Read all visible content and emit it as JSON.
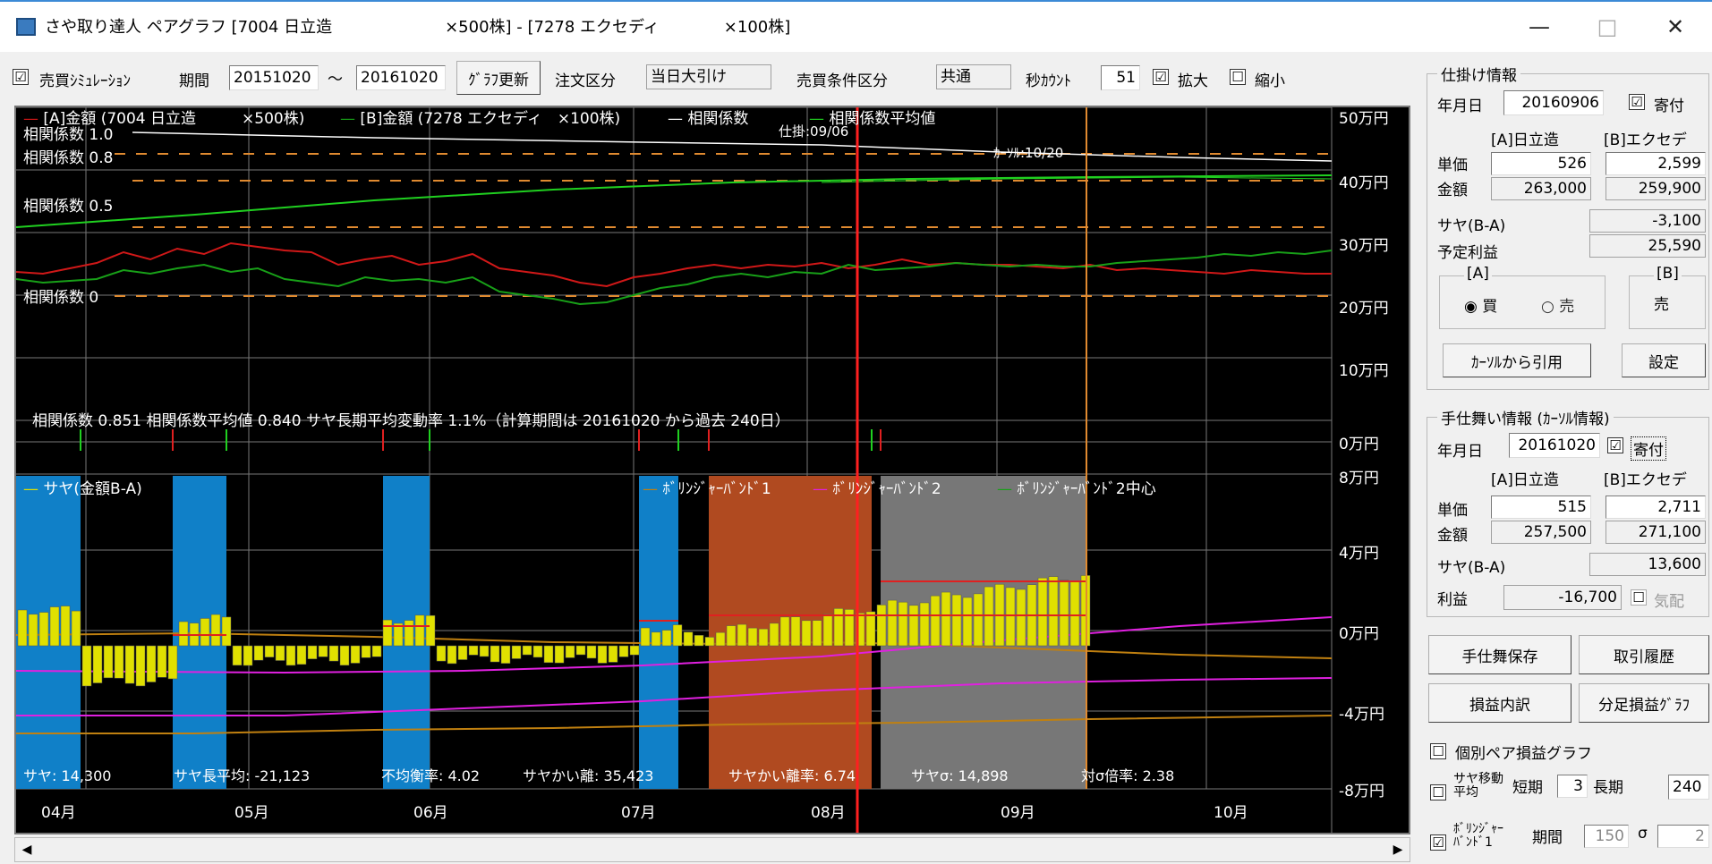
{
  "window": {
    "title": "さや取り達人 ペアグラフ [7004 日立造　　　　　　　×500株] - [7278 エクセディ　　　　×100株]",
    "minimize": "—",
    "maximize": "□",
    "close": "✕"
  },
  "toolbar": {
    "sim_checkbox": "☑",
    "sim_label": "売買ｼﾐｭﾚｰｼｮﾝ",
    "period_label": "期間",
    "period_from": "20151020",
    "tilde": "〜",
    "period_to": "20161020",
    "update_button": "ｸﾞﾗﾌ更新",
    "order_type_label": "注文区分",
    "order_type_value": "当日大引け",
    "condition_label": "売買条件区分",
    "condition_value": "共通",
    "sec_count_label": "秒ｶｳﾝﾄ",
    "sec_count_value": "51",
    "zoom_in_checkbox": "☑",
    "zoom_in_label": "拡大",
    "zoom_out_checkbox": "☐",
    "zoom_out_label": "縮小"
  },
  "chart": {
    "upper_legend": [
      "[A]金額 (7004 日立造　　　×500株)",
      "[B]金額 (7278 エクセディ　×100株)",
      "相関係数",
      "相関係数平均値"
    ],
    "upper_y_labels": [
      "50万円",
      "40万円",
      "30万円",
      "20万円",
      "10万円",
      "0万円"
    ],
    "corr_labels": [
      "相関係数 1.0",
      "相関係数 0.8",
      "相関係数 0.5",
      "相関係数 0"
    ],
    "entry_marker": "仕掛:09/06",
    "cursor_marker": "ｶｰｿﾙ:10/20",
    "summary": "相関係数 0.851 相関係数平均値 0.840 サヤ長期平均変動率 1.1%（計算期間は 20161020 から過去 240日）",
    "lower_legend": [
      "サヤ(金額B-A)",
      "ﾎﾞﾘﾝｼﾞｬｰﾊﾞﾝﾄﾞ1",
      "ﾎﾞﾘﾝｼﾞｬｰﾊﾞﾝﾄﾞ2",
      "ﾎﾞﾘﾝｼﾞｬｰﾊﾞﾝﾄﾞ2中心"
    ],
    "lower_y_labels": [
      "8万円",
      "4万円",
      "0万円",
      "-4万円",
      "-8万円"
    ],
    "stats": [
      "サヤ: 14,300",
      "サヤ長平均: -21,123",
      "不均衡率: 4.02",
      "サヤかい離: 35,423",
      "サヤかい離率: 6.74",
      "サヤσ: 14,898",
      "対σ倍率: 2.38"
    ],
    "x_labels": [
      "04月",
      "05月",
      "06月",
      "07月",
      "08月",
      "09月",
      "10月"
    ],
    "colors": {
      "a_line": "#d01818",
      "b_line": "#18a018",
      "corr": "#ffffff",
      "corr_avg": "#20d020",
      "bar": "#e0e000",
      "band1": "#c08010",
      "band2": "#e020e0",
      "cursor": "#ff2020",
      "blue_zone": "#1080c8",
      "orange_zone": "#b04a20",
      "gray_zone": "#777777"
    }
  },
  "chart_data": {
    "type": "line",
    "title": "",
    "x": [
      "04月",
      "05月",
      "06月",
      "07月",
      "08月",
      "09月",
      "10月"
    ],
    "series": [
      {
        "name": "[A]金額 (7004 日立造　　　×500株)",
        "values": [
          26,
          27,
          27,
          24,
          26,
          26,
          26
        ]
      },
      {
        "name": "[B]金額 (7278 エクセディ　×100株)",
        "values": [
          25,
          25,
          24,
          22,
          25,
          26,
          27
        ]
      },
      {
        "name": "相関係数平均値",
        "values": [
          0.5,
          0.58,
          0.65,
          0.72,
          0.78,
          0.82,
          0.84
        ]
      }
    ],
    "ylabel": "",
    "ylim": [
      0,
      50
    ]
  },
  "entry_panel": {
    "legend": "仕掛け情報",
    "date_label": "年月日",
    "date": "20160906",
    "yoritsuke_checkbox": "☑",
    "yoritsuke_label": "寄付",
    "col_a": "[A]日立造",
    "col_b": "[B]エクセデ",
    "unit_price_label": "単価",
    "amount_label": "金額",
    "a_price": "526",
    "b_price": "2,599",
    "a_amount": "263,000",
    "b_amount": "259,900",
    "spread_label": "サヤ(B-A)",
    "spread": "-3,100",
    "expected_label": "予定利益",
    "expected": "25,590",
    "a_group": "[A]",
    "buy_label": "買",
    "sell_label": "売",
    "b_group": "[B]",
    "b_side": "売",
    "cursor_button": "ｶｰｿﾙから引用",
    "settings_button": "設定"
  },
  "exit_panel": {
    "legend": "手仕舞い情報 (ｶｰｿﾙ情報)",
    "date_label": "年月日",
    "date": "20161020",
    "yoritsuke_checkbox": "☑",
    "yoritsuke_label": "寄付",
    "col_a": "[A]日立造",
    "col_b": "[B]エクセデ",
    "unit_price_label": "単価",
    "amount_label": "金額",
    "a_price": "515",
    "b_price": "2,711",
    "a_amount": "257,500",
    "b_amount": "271,100",
    "spread_label": "サヤ(B-A)",
    "spread": "13,600",
    "profit_label": "利益",
    "profit": "-16,700",
    "fee_checkbox": "☐",
    "fee_label": "気配"
  },
  "buttons": {
    "save_exit": "手仕舞保存",
    "history": "取引履歴",
    "pl_detail": "損益内訳",
    "minute_graph": "分足損益ｸﾞﾗﾌ"
  },
  "options": {
    "pair_pl_checkbox": "☐",
    "pair_pl_label": "個別ペア損益グラフ",
    "ma_checkbox": "☐",
    "ma_label": "サヤ移動平均",
    "short_label": "短期",
    "short_value": "3",
    "long_label": "長期",
    "long_value": "240",
    "bb_checkbox": "☑",
    "bb_label": "ﾎﾞﾘﾝｼﾞｬｰﾊﾞﾝﾄﾞ1",
    "bb_period_label": "期間",
    "bb_period": "150",
    "sigma_label": "σ",
    "sigma_value": "2"
  },
  "scrollbar": {
    "left": "◀",
    "right": "▶"
  }
}
